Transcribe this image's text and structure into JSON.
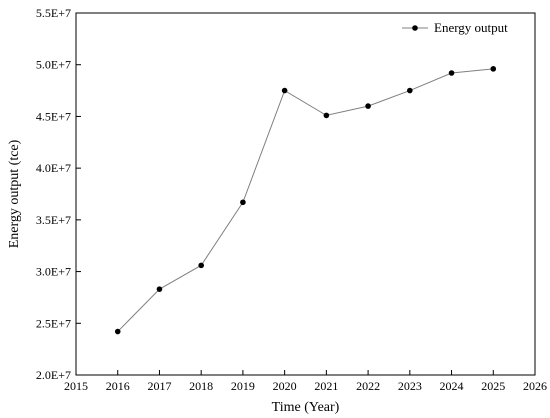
{
  "chart_data": {
    "type": "line",
    "title": "",
    "xlabel": "Time (Year)",
    "ylabel": "Energy output (tce)",
    "xlim": [
      2015,
      2026
    ],
    "ylim": [
      20000000,
      55000000
    ],
    "x_ticks": [
      2015,
      2016,
      2017,
      2018,
      2019,
      2020,
      2021,
      2022,
      2023,
      2024,
      2025,
      2026
    ],
    "x_tick_labels": [
      "2015",
      "2016",
      "2017",
      "2018",
      "2019",
      "2020",
      "2021",
      "2022",
      "2023",
      "2024",
      "2025",
      "2026"
    ],
    "y_ticks": [
      20000000,
      25000000,
      30000000,
      35000000,
      40000000,
      45000000,
      50000000,
      55000000
    ],
    "y_tick_labels": [
      "2.0E+7",
      "2.5E+7",
      "3.0E+7",
      "3.5E+7",
      "4.0E+7",
      "4.5E+7",
      "5.0E+7",
      "5.5E+7"
    ],
    "grid": false,
    "legend_position": "top-right",
    "series": [
      {
        "name": "Energy output",
        "color": "#808080",
        "marker_color": "#000000",
        "x": [
          2016,
          2017,
          2018,
          2019,
          2020,
          2021,
          2022,
          2023,
          2024,
          2025
        ],
        "values": [
          24200000,
          28300000,
          30600000,
          36700000,
          47500000,
          45100000,
          46000000,
          47500000,
          49200000,
          49600000
        ]
      }
    ]
  }
}
